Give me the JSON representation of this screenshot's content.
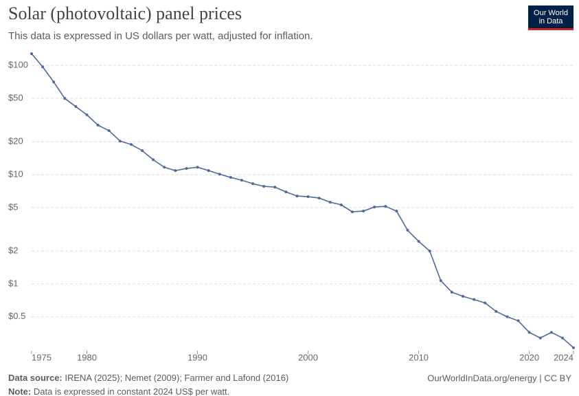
{
  "chart_data": {
    "type": "line",
    "title": "Solar (photovoltaic) panel prices",
    "subtitle": "This data is expressed in US dollars per watt, adjusted for inflation.",
    "logo": [
      "Our World",
      "in Data"
    ],
    "source_label": "Data source:",
    "source": "IRENA (2025); Nemet (2009); Farmer and Lafond (2016)",
    "url": "OurWorldInData.org/energy | CC BY",
    "note_label": "Note:",
    "note": "Data is expressed in constant 2024 US$ per watt.",
    "log_scale": true,
    "grid": true,
    "color": "#4e6a9a",
    "x": [
      1975,
      1976,
      1977,
      1978,
      1979,
      1980,
      1981,
      1982,
      1983,
      1984,
      1985,
      1986,
      1987,
      1988,
      1989,
      1990,
      1991,
      1992,
      1993,
      1994,
      1995,
      1996,
      1997,
      1998,
      1999,
      2000,
      2001,
      2002,
      2003,
      2004,
      2005,
      2006,
      2007,
      2008,
      2009,
      2010,
      2011,
      2012,
      2013,
      2014,
      2015,
      2016,
      2017,
      2018,
      2019,
      2020,
      2021,
      2022,
      2023,
      2024
    ],
    "values": [
      128,
      97,
      70.6,
      49.9,
      42,
      35.3,
      28.4,
      25.3,
      20.3,
      18.9,
      16.6,
      13.7,
      11.7,
      10.9,
      11.4,
      11.7,
      10.9,
      10.1,
      9.44,
      8.9,
      8.28,
      7.82,
      7.7,
      6.96,
      6.38,
      6.29,
      6.11,
      5.6,
      5.29,
      4.57,
      4.64,
      5.06,
      5.13,
      4.64,
      3.1,
      2.45,
      2.0,
      1.07,
      0.84,
      0.77,
      0.72,
      0.67,
      0.56,
      0.5,
      0.46,
      0.36,
      0.32,
      0.36,
      0.32,
      0.26
    ],
    "xlim": [
      1975,
      2024
    ],
    "xticks": [
      1975,
      1980,
      1990,
      2000,
      2010,
      2020,
      2024
    ],
    "ylim": [
      0.245,
      134
    ],
    "yticks": [
      {
        "value": 0.5,
        "label": "$0.5"
      },
      {
        "value": 1,
        "label": "$1"
      },
      {
        "value": 2,
        "label": "$2"
      },
      {
        "value": 5,
        "label": "$5"
      },
      {
        "value": 10,
        "label": "$10"
      },
      {
        "value": 20,
        "label": "$20"
      },
      {
        "value": 50,
        "label": "$50"
      },
      {
        "value": 100,
        "label": "$100"
      }
    ]
  }
}
